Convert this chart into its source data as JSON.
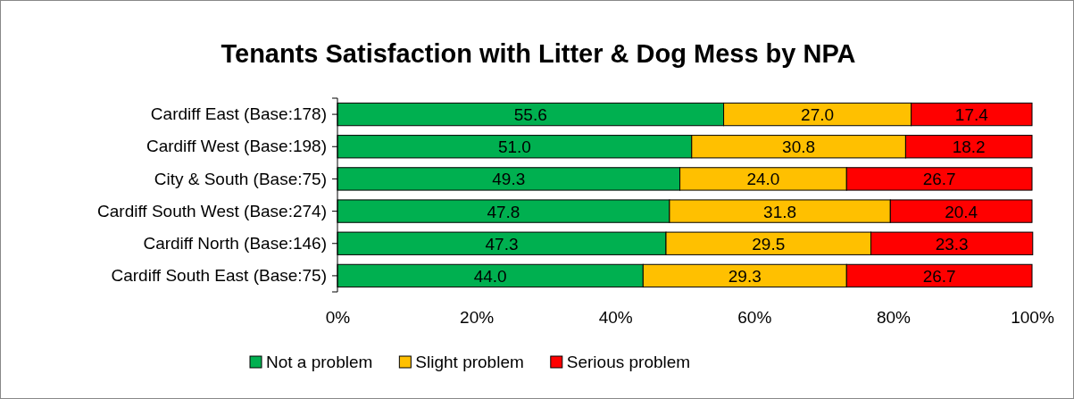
{
  "chart_data": {
    "type": "bar",
    "orientation": "horizontal",
    "stacked": true,
    "title": "Tenants Satisfaction with Litter & Dog Mess by NPA",
    "categories": [
      "Cardiff East (Base:178)",
      "Cardiff West (Base:198)",
      "City & South (Base:75)",
      "Cardiff South West (Base:274)",
      "Cardiff North (Base:146)",
      "Cardiff South East (Base:75)"
    ],
    "series": [
      {
        "name": "Not a problem",
        "color": "#00b050",
        "values": [
          55.6,
          51.0,
          49.3,
          47.8,
          47.3,
          44.0
        ],
        "value_labels": [
          "55.6",
          "51.0",
          "49.3",
          "47.8",
          "47.3",
          "44.0"
        ]
      },
      {
        "name": "Slight problem",
        "color": "#ffc000",
        "values": [
          27.0,
          30.8,
          24.0,
          31.8,
          29.5,
          29.3
        ],
        "value_labels": [
          "27.0",
          "30.8",
          "24.0",
          "31.8",
          "29.5",
          "29.3"
        ]
      },
      {
        "name": "Serious problem",
        "color": "#ff0000",
        "values": [
          17.4,
          18.2,
          26.7,
          20.4,
          23.3,
          26.7
        ],
        "value_labels": [
          "17.4",
          "18.2",
          "26.7",
          "20.4",
          "23.3",
          "26.7"
        ]
      }
    ],
    "xlim": [
      0,
      100
    ],
    "xticks": [
      {
        "value": 0,
        "label": "0%"
      },
      {
        "value": 20,
        "label": "20%"
      },
      {
        "value": 40,
        "label": "40%"
      },
      {
        "value": 60,
        "label": "60%"
      },
      {
        "value": 80,
        "label": "80%"
      },
      {
        "value": 100,
        "label": "100%"
      }
    ],
    "legend": "bottom",
    "grid": false
  }
}
